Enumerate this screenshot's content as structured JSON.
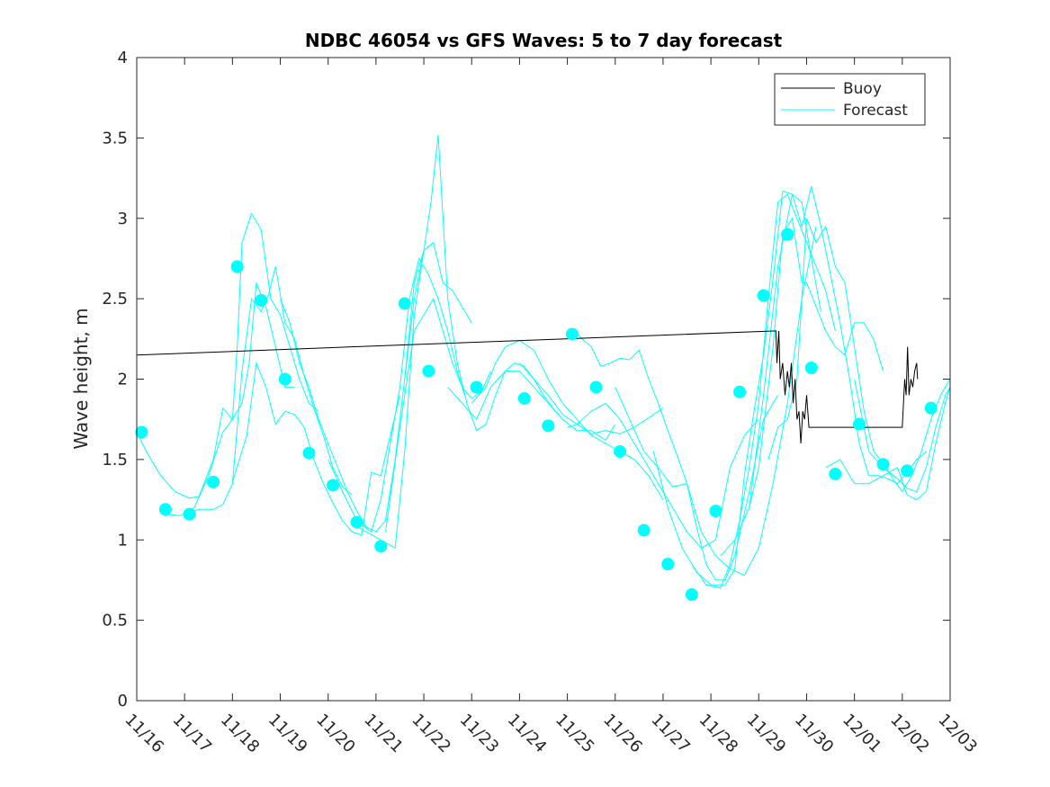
{
  "chart_data": {
    "type": "line",
    "title": "NDBC 46054 vs GFS Waves: 5 to 7 day forecast",
    "xlabel": "",
    "ylabel": "Wave height, m",
    "xlim": [
      0,
      17
    ],
    "ylim": [
      0,
      4
    ],
    "x_tick_labels": [
      "11/16",
      "11/17",
      "11/18",
      "11/19",
      "11/20",
      "11/21",
      "11/22",
      "11/23",
      "11/24",
      "11/25",
      "11/26",
      "11/27",
      "11/28",
      "11/29",
      "11/30",
      "12/01",
      "12/02",
      "12/03"
    ],
    "y_ticks": [
      0,
      0.5,
      1,
      1.5,
      2,
      2.5,
      3,
      3.5,
      4
    ],
    "y_tick_labels": [
      "0",
      "0.5",
      "1",
      "1.5",
      "2",
      "2.5",
      "3",
      "3.5",
      "4"
    ],
    "legend": {
      "position": "top-right",
      "entries": [
        "Buoy",
        "Forecast"
      ]
    },
    "colors": {
      "buoy": "#000000",
      "forecast": "#00ffff",
      "axis": "#262626"
    },
    "series": [
      {
        "name": "Buoy",
        "x": [
          0,
          13.36,
          13.38,
          13.42,
          13.45,
          13.5,
          13.55,
          13.6,
          13.64,
          13.68,
          13.72,
          13.76,
          13.8,
          13.84,
          13.88,
          13.92,
          13.96,
          14.0,
          14.05,
          14.1,
          15.2,
          16.0,
          16.05,
          16.08,
          16.11,
          16.14,
          16.18,
          16.22,
          16.26,
          16.3,
          16.32
        ],
        "y": [
          2.15,
          2.3,
          2.1,
          2.3,
          2.0,
          2.1,
          1.9,
          2.05,
          1.95,
          2.1,
          1.85,
          2.0,
          1.75,
          1.8,
          1.6,
          1.8,
          1.75,
          1.9,
          1.7,
          1.7,
          1.7,
          1.7,
          2.0,
          1.9,
          2.2,
          1.9,
          2.0,
          1.95,
          2.05,
          2.1,
          2.0
        ]
      },
      {
        "name": "Forecast",
        "runs": [
          {
            "x": [
              0.0,
              0.2,
              0.5,
              0.8,
              1.1,
              1.3,
              1.6,
              1.8,
              2.0,
              2.1,
              2.2,
              2.35,
              2.5,
              2.7,
              2.9,
              3.1,
              3.3
            ],
            "y": [
              1.67,
              1.55,
              1.4,
              1.3,
              1.26,
              1.27,
              1.5,
              1.82,
              1.75,
              1.8,
              1.85,
              2.1,
              2.6,
              2.45,
              2.2,
              1.95,
              1.95
            ]
          },
          {
            "x": [
              0.6,
              0.9,
              1.2,
              1.5,
              1.8,
              2.0,
              2.1,
              2.2,
              2.4,
              2.6,
              2.8,
              3.0,
              3.2,
              3.4,
              3.6,
              3.8
            ],
            "y": [
              1.16,
              1.15,
              1.2,
              1.4,
              1.67,
              1.75,
              2.2,
              2.85,
              3.03,
              2.93,
              2.5,
              2.4,
              2.2,
              2.0,
              1.85,
              1.8
            ]
          },
          {
            "x": [
              1.0,
              1.3,
              1.6,
              1.8,
              2.0,
              2.2,
              2.4,
              2.6,
              2.75,
              2.9,
              3.1,
              3.3,
              3.5,
              3.7,
              3.9,
              4.1,
              4.3,
              4.5
            ],
            "y": [
              1.16,
              1.19,
              1.19,
              1.22,
              1.35,
              2.05,
              2.5,
              2.42,
              2.52,
              2.7,
              2.35,
              2.25,
              2.02,
              1.82,
              1.65,
              1.45,
              1.33,
              1.28
            ]
          },
          {
            "x": [
              2.0,
              2.3,
              2.5,
              2.7,
              2.9,
              3.1,
              3.3,
              3.5,
              3.7,
              3.9,
              4.1,
              4.3,
              4.5,
              4.7,
              4.9,
              5.1,
              5.3,
              5.5
            ],
            "y": [
              1.36,
              1.65,
              2.1,
              1.95,
              1.72,
              1.8,
              1.78,
              1.7,
              1.5,
              1.35,
              1.23,
              1.12,
              1.05,
              1.03,
              1.42,
              1.4,
              1.65,
              1.9
            ]
          },
          {
            "x": [
              3.0,
              3.2,
              3.4,
              3.6,
              3.8,
              4.0,
              4.2,
              4.4,
              4.6,
              4.8,
              5.0,
              5.2,
              5.4,
              5.6,
              5.8,
              6.0,
              6.2
            ],
            "y": [
              2.5,
              2.35,
              2.1,
              1.95,
              1.75,
              1.6,
              1.45,
              1.3,
              1.18,
              1.08,
              1.05,
              1.12,
              1.5,
              2.0,
              2.6,
              2.8,
              2.85
            ]
          },
          {
            "x": [
              4.0,
              4.3,
              4.6,
              4.9,
              5.1,
              5.3,
              5.5,
              5.7,
              5.9,
              6.1,
              6.3,
              6.5,
              6.7,
              6.85
            ],
            "y": [
              1.5,
              1.3,
              1.12,
              1.05,
              1.25,
              1.6,
              1.95,
              2.5,
              2.75,
              2.65,
              2.5,
              2.3,
              2.05,
              1.9
            ]
          },
          {
            "x": [
              4.5,
              4.8,
              5.1,
              5.4,
              5.6,
              5.8,
              6.0,
              6.2,
              6.4,
              6.6,
              6.8,
              7.0
            ],
            "y": [
              1.1,
              1.05,
              1.0,
              0.95,
              1.55,
              2.4,
              2.8,
              2.85,
              2.6,
              2.55,
              2.45,
              2.35
            ]
          },
          {
            "x": [
              5.2,
              5.5,
              5.8,
              6.0,
              6.2,
              6.4,
              6.6,
              6.8,
              7.0,
              7.2,
              7.4
            ],
            "y": [
              1.05,
              1.7,
              2.3,
              2.4,
              2.5,
              2.3,
              2.1,
              1.95,
              1.88,
              1.92,
              2.05
            ]
          },
          {
            "x": [
              5.6,
              5.8,
              6.0,
              6.15,
              6.3,
              6.5,
              6.7,
              6.9,
              7.1,
              7.3,
              7.5,
              7.7,
              7.9,
              8.1,
              8.3,
              8.5,
              8.7,
              8.9
            ],
            "y": [
              2.0,
              2.5,
              2.8,
              3.1,
              3.52,
              2.5,
              2.1,
              1.85,
              1.68,
              1.72,
              1.9,
              2.05,
              2.1,
              2.08,
              2.0,
              1.9,
              1.82,
              1.75
            ]
          },
          {
            "x": [
              6.5,
              6.8,
              7.1,
              7.4,
              7.7,
              8.0,
              8.3,
              8.6,
              8.9,
              9.2,
              9.5,
              9.8,
              10.0
            ],
            "y": [
              1.95,
              1.85,
              1.75,
              1.95,
              2.05,
              2.05,
              1.95,
              1.85,
              1.75,
              1.68,
              1.68,
              1.62,
              1.72
            ]
          },
          {
            "x": [
              7.0,
              7.3,
              7.5,
              7.7,
              8.0,
              8.3,
              8.6,
              8.9,
              9.2,
              9.5,
              9.8,
              10.1,
              10.4,
              10.7,
              11.0
            ],
            "y": [
              1.85,
              1.95,
              2.1,
              2.2,
              2.24,
              2.18,
              2.0,
              1.85,
              1.75,
              1.65,
              1.6,
              1.55,
              1.5,
              1.4,
              1.25
            ]
          },
          {
            "x": [
              8.0,
              8.3,
              8.6,
              8.9,
              9.2,
              9.5,
              9.8,
              10.1,
              10.4,
              10.7,
              11.0
            ],
            "y": [
              2.1,
              2.0,
              1.9,
              1.78,
              1.72,
              1.66,
              1.68,
              1.66,
              1.7,
              1.76,
              1.82
            ]
          },
          {
            "x": [
              9.0,
              9.2,
              9.5,
              9.8,
              10.1,
              10.3,
              10.6,
              10.9,
              11.2,
              11.5,
              11.8,
              12.1,
              12.4,
              12.7,
              13.0
            ],
            "y": [
              1.7,
              1.72,
              1.8,
              1.85,
              1.75,
              1.65,
              1.5,
              1.35,
              1.2,
              1.05,
              0.95,
              1.0,
              1.45,
              1.65,
              1.75
            ]
          },
          {
            "x": [
              9.2,
              9.5,
              9.7,
              9.9,
              10.1,
              10.3,
              10.5,
              10.7,
              10.9,
              11.1,
              11.3,
              11.5,
              11.7,
              11.9,
              12.1,
              12.3,
              12.5,
              12.8,
              13.1,
              13.4
            ],
            "y": [
              2.28,
              2.2,
              2.08,
              2.1,
              2.13,
              2.12,
              2.18,
              2.0,
              1.85,
              1.68,
              1.52,
              1.35,
              1.08,
              0.85,
              0.75,
              0.75,
              0.9,
              1.3,
              1.75,
              1.9
            ]
          },
          {
            "x": [
              10.0,
              10.3,
              10.6,
              10.9,
              11.2,
              11.5,
              11.8,
              12.1,
              12.4,
              12.7,
              13.0,
              13.3,
              13.6,
              13.9,
              14.2
            ],
            "y": [
              1.95,
              1.75,
              1.55,
              1.45,
              1.33,
              1.35,
              1.05,
              0.9,
              0.82,
              0.78,
              0.95,
              1.35,
              1.85,
              2.5,
              2.95
            ]
          },
          {
            "x": [
              10.8,
              11.1,
              11.4,
              11.7,
              12.0,
              12.3,
              12.5,
              12.7,
              12.9,
              13.1,
              13.3,
              13.5,
              13.7,
              13.9,
              14.1,
              14.3
            ],
            "y": [
              1.55,
              1.2,
              0.95,
              0.8,
              0.72,
              0.72,
              0.82,
              1.4,
              1.8,
              2.15,
              2.62,
              3.17,
              3.15,
              3.1,
              2.75,
              2.42
            ]
          },
          {
            "x": [
              11.6,
              11.9,
              12.2,
              12.4,
              12.6,
              12.8,
              13.0,
              13.2,
              13.4,
              13.6,
              13.8,
              14.0,
              14.2,
              14.4,
              14.6
            ],
            "y": [
              0.85,
              0.72,
              0.7,
              0.85,
              1.12,
              1.45,
              1.85,
              2.5,
              3.1,
              3.15,
              3.0,
              2.85,
              2.7,
              2.55,
              2.3
            ]
          },
          {
            "x": [
              12.2,
              12.5,
              12.8,
              13.0,
              13.3,
              13.5,
              13.7,
              13.9,
              14.0,
              14.2,
              14.4,
              14.6,
              14.8,
              15.0,
              15.2,
              15.4,
              15.6
            ],
            "y": [
              0.9,
              1.0,
              1.2,
              1.45,
              2.2,
              2.9,
              3.0,
              2.6,
              2.6,
              2.45,
              2.3,
              2.2,
              2.15,
              2.35,
              2.35,
              2.25,
              2.05
            ]
          },
          {
            "x": [
              12.8,
              13.1,
              13.4,
              13.7,
              13.9,
              14.1,
              14.3,
              14.5,
              14.7,
              14.9,
              15.1,
              15.3,
              15.5,
              15.7,
              15.9,
              16.1,
              16.3,
              16.5
            ],
            "y": [
              1.2,
              1.9,
              2.7,
              3.15,
              2.95,
              3.2,
              2.95,
              2.65,
              2.35,
              2.0,
              1.6,
              1.4,
              1.4,
              1.38,
              1.35,
              1.42,
              1.5,
              1.55
            ]
          },
          {
            "x": [
              13.2,
              13.4,
              13.6,
              13.8,
              14.0,
              14.2,
              14.4,
              14.6,
              14.8,
              15.0,
              15.2,
              15.4,
              15.6,
              15.8,
              16.0,
              16.2,
              16.4,
              16.6,
              16.8,
              17.0
            ],
            "y": [
              1.5,
              1.7,
              1.75,
              2.0,
              3.0,
              2.85,
              2.95,
              2.7,
              2.6,
              2.2,
              1.8,
              1.55,
              1.48,
              1.38,
              1.3,
              1.4,
              1.55,
              1.75,
              1.9,
              2.0
            ]
          },
          {
            "x": [
              14.4,
              14.7,
              15.0,
              15.3,
              15.6,
              15.9,
              16.1,
              16.3,
              16.5,
              16.7,
              16.9,
              17.0
            ],
            "y": [
              1.45,
              1.5,
              1.35,
              1.35,
              1.4,
              1.45,
              1.28,
              1.25,
              1.3,
              1.6,
              1.85,
              1.95
            ]
          },
          {
            "x": [
              15.0,
              15.3,
              15.6,
              15.9,
              16.1,
              16.3,
              16.5,
              16.7,
              16.9,
              17.0
            ],
            "y": [
              2.0,
              1.55,
              1.45,
              1.38,
              1.32,
              1.3,
              1.45,
              1.7,
              1.9,
              1.95
            ]
          }
        ],
        "markers": {
          "x": [
            0.1,
            0.6,
            1.1,
            1.6,
            2.1,
            2.6,
            3.1,
            3.6,
            4.1,
            4.6,
            5.1,
            5.6,
            6.1,
            7.1,
            8.1,
            8.6,
            9.1,
            9.6,
            10.1,
            10.6,
            11.1,
            11.6,
            12.1,
            12.6,
            13.1,
            13.6,
            14.1,
            14.6,
            15.1,
            15.6,
            16.1,
            16.6
          ],
          "y": [
            1.67,
            1.19,
            1.16,
            1.36,
            2.7,
            2.49,
            2.0,
            1.54,
            1.34,
            1.11,
            0.96,
            2.47,
            2.05,
            1.95,
            1.88,
            1.71,
            2.28,
            1.95,
            1.55,
            1.06,
            0.85,
            0.66,
            1.18,
            1.92,
            2.52,
            2.9,
            2.07,
            1.41,
            1.72,
            1.47,
            1.43,
            1.82
          ]
        }
      }
    ]
  }
}
